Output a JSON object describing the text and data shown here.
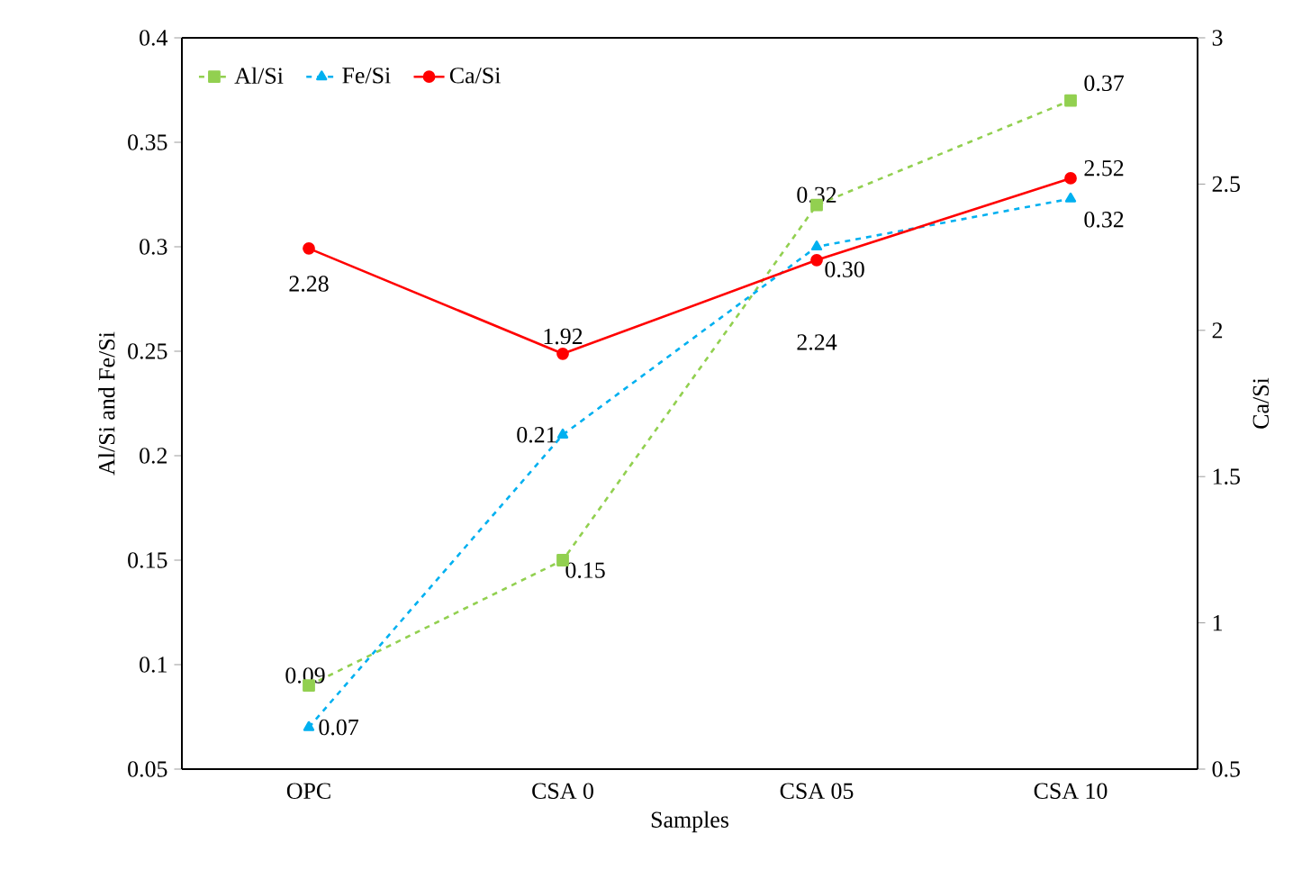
{
  "chart_data": {
    "type": "line",
    "xlabel": "Samples",
    "ylabel": "Al/Si and Fe/Si",
    "y2label": "Ca/Si",
    "categories": [
      "OPC",
      "CSA 0",
      "CSA 05",
      "CSA 10"
    ],
    "series": [
      {
        "name": "Al/Si",
        "color": "#92d050",
        "values": [
          0.09,
          0.15,
          0.32,
          0.37
        ],
        "value_labels": [
          "0.09",
          "0.15",
          "0.32",
          "0.37"
        ],
        "marker": "square",
        "line_style": "dashed"
      },
      {
        "name": "Fe/Si",
        "color": "#00b0f0",
        "values": [
          0.07,
          0.21,
          0.3,
          0.323
        ],
        "value_labels": [
          "0.07",
          "0.21",
          "0.30",
          "0.32"
        ],
        "marker": "triangle",
        "line_style": "dashed"
      },
      {
        "name": "Ca/Si",
        "color": "#ff0000",
        "values": [
          2.28,
          1.92,
          2.24,
          2.52
        ],
        "value_labels": [
          "2.28",
          "1.92",
          "2.24",
          "2.52"
        ],
        "marker": "circle",
        "line_style": "solid",
        "axis": "y2"
      }
    ],
    "ylim": [
      0.05,
      0.4
    ],
    "yticks": [
      0.05,
      0.1,
      0.15,
      0.2,
      0.25,
      0.3,
      0.35,
      0.4
    ],
    "y2lim": [
      0.5,
      3
    ],
    "y2ticks": [
      0.5,
      1,
      1.5,
      2,
      2.5,
      3
    ],
    "legend": "top left",
    "grid": false
  }
}
